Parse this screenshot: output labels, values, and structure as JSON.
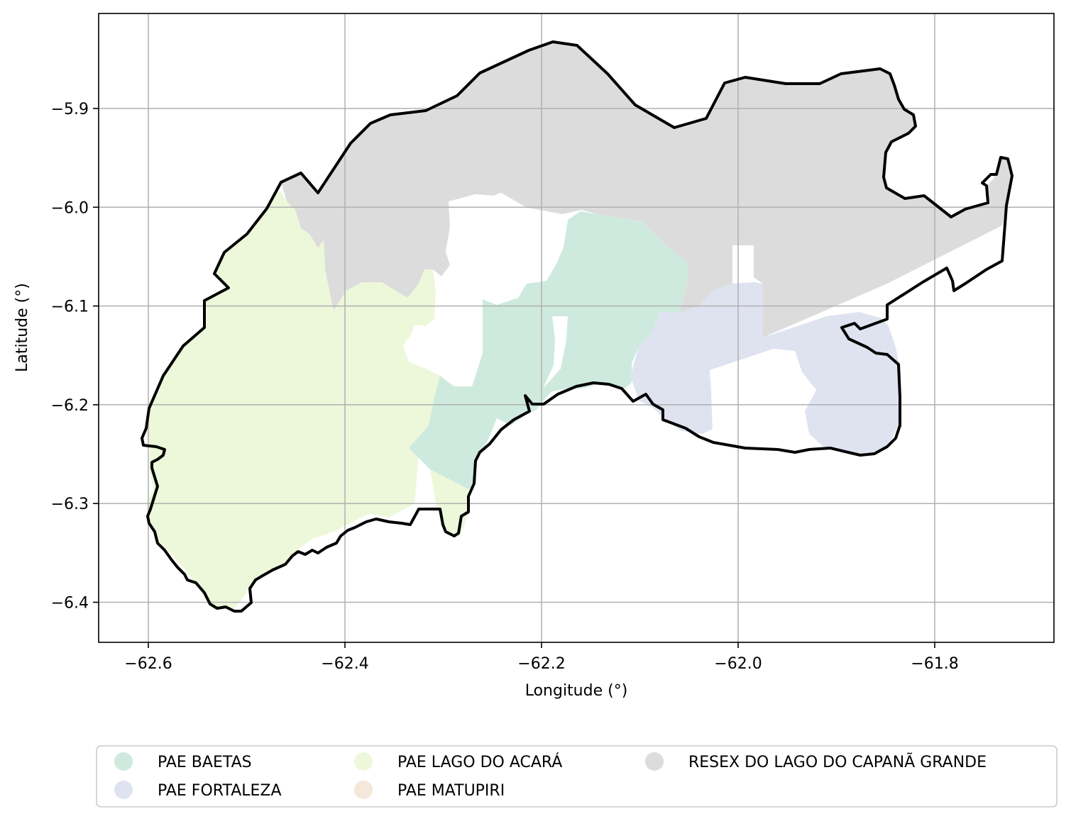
{
  "map": {
    "xlabel": "Longitude (°)",
    "ylabel": "Latitude (°)",
    "xlim": [
      -62.65,
      -61.68
    ],
    "ylim": [
      -6.44,
      -5.8
    ],
    "grid": true,
    "x_ticks": [
      {
        "value": -62.6,
        "label": "−62.6"
      },
      {
        "value": -62.4,
        "label": "−62.4"
      },
      {
        "value": -62.2,
        "label": "−62.2"
      },
      {
        "value": -62.0,
        "label": "−62.0"
      },
      {
        "value": -61.8,
        "label": "−61.8"
      }
    ],
    "y_ticks": [
      {
        "value": -5.9,
        "label": "−5.9"
      },
      {
        "value": -6.0,
        "label": "−6.0"
      },
      {
        "value": -6.1,
        "label": "−6.1"
      },
      {
        "value": -6.2,
        "label": "−6.2"
      },
      {
        "value": -6.3,
        "label": "−6.3"
      },
      {
        "value": -6.4,
        "label": "−6.4"
      }
    ],
    "legend_position": "bottom, below axes, 3 columns",
    "legend": [
      {
        "id": "baetas",
        "label": "PAE BAETAS",
        "color": "#ceeade"
      },
      {
        "id": "fortaleza",
        "label": "PAE FORTALEZA",
        "color": "#dfe3f0"
      },
      {
        "id": "acara",
        "label": "PAE LAGO DO ACARÁ",
        "color": "#edf7da"
      },
      {
        "id": "matupiri",
        "label": "PAE MATUPIRI",
        "color": "#f3e8da"
      },
      {
        "id": "capana",
        "label": "RESEX DO LAGO DO CAPANÃ GRANDE",
        "color": "#dcdcdc"
      }
    ],
    "outline_color": "#000000"
  }
}
